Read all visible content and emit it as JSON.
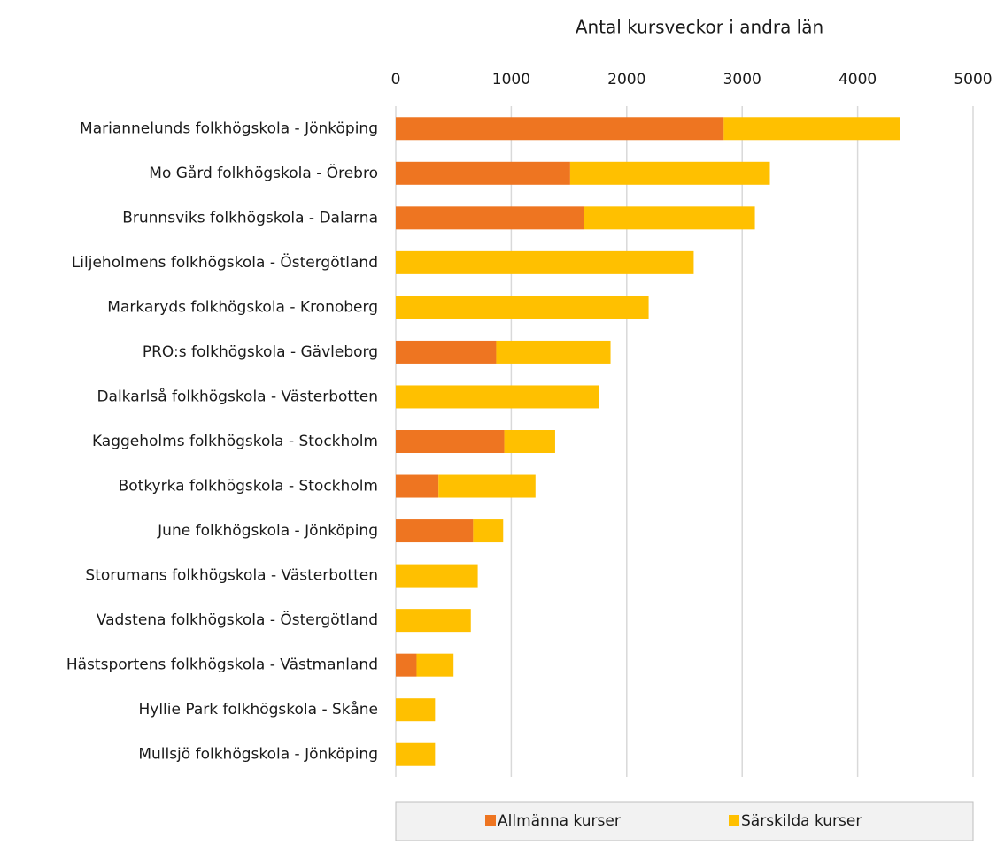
{
  "chart_data": {
    "type": "stacked-barh",
    "title": "Antal kursveckor i andra län",
    "categories": [
      "Mariannelunds folkhögskola  -  Jönköping",
      "Mo Gård folkhögskola  -  Örebro",
      "Brunnsviks folkhögskola  -  Dalarna",
      "Liljeholmens folkhögskola  -  Östergötland",
      "Markaryds folkhögskola  -  Kronoberg",
      "PRO:s folkhögskola  -  Gävleborg",
      "Dalkarlså folkhögskola  -  Västerbotten",
      "Kaggeholms folkhögskola  -  Stockholm",
      "Botkyrka folkhögskola  -  Stockholm",
      "June folkhögskola  -  Jönköping",
      "Storumans folkhögskola  -  Västerbotten",
      "Vadstena folkhögskola  -  Östergötland",
      "Hästsportens folkhögskola  -  Västmanland",
      "Hyllie Park folkhögskola  -  Skåne",
      "Mullsjö folkhögskola  -  Jönköping"
    ],
    "series": [
      {
        "name": "Allmänna kurser",
        "color": "#ee7521",
        "values": [
          2840,
          1510,
          1630,
          0,
          0,
          870,
          0,
          940,
          370,
          670,
          0,
          0,
          180,
          0,
          0
        ]
      },
      {
        "name": "Särskilda kurser",
        "color": "#ffc000",
        "values": [
          1530,
          1730,
          1480,
          2580,
          2190,
          990,
          1760,
          440,
          840,
          260,
          710,
          650,
          320,
          340,
          340
        ]
      }
    ],
    "xlim": [
      0,
      5000
    ],
    "xticks": [
      0,
      1000,
      2000,
      3000,
      4000,
      5000
    ],
    "grid": true,
    "legend": "bottom"
  }
}
